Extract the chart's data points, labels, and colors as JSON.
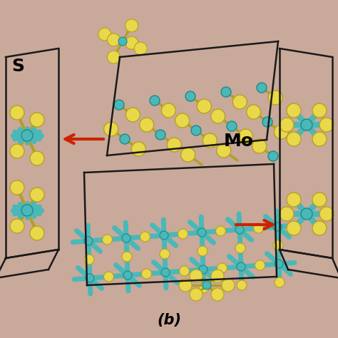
{
  "bg_color": "#c9a99a",
  "S_color": "#e8d84a",
  "Mo_color": "#4ab8b8",
  "S_edge": "#b8a020",
  "Mo_edge": "#208888",
  "bond_color": "#b8a030",
  "box_color": "#1a1a1a",
  "arrow_color": "#cc2200",
  "label_S": "S",
  "label_Mo": "Mo",
  "label_b": "(b)"
}
